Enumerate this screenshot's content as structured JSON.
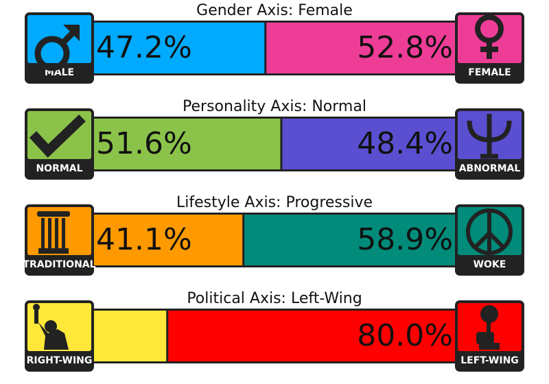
{
  "axes": [
    {
      "title": "Gender Axis: Female",
      "left": {
        "name": "MALE",
        "value": 47.2,
        "label": "47.2%",
        "color": "#00aaff"
      },
      "right": {
        "name": "FEMALE",
        "value": 52.8,
        "label": "52.8%",
        "color": "#ee3d97"
      }
    },
    {
      "title": "Personality Axis: Normal",
      "left": {
        "name": "NORMAL",
        "value": 51.6,
        "label": "51.6%",
        "color": "#8bc34a"
      },
      "right": {
        "name": "ABNORMAL",
        "value": 48.4,
        "label": "48.4%",
        "color": "#5b4fd1"
      }
    },
    {
      "title": "Lifestyle Axis: Progressive",
      "left": {
        "name": "TRADITIONAL",
        "value": 41.1,
        "label": "41.1%",
        "color": "#ff9900"
      },
      "right": {
        "name": "WOKE",
        "value": 58.9,
        "label": "58.9%",
        "color": "#008b7a"
      }
    },
    {
      "title": "Political Axis: Left-Wing",
      "left": {
        "name": "RIGHT-WING",
        "value": 20.0,
        "label": null,
        "color": "#ffe83a"
      },
      "right": {
        "name": "LEFT-WING",
        "value": 80.0,
        "label": "80.0%",
        "color": "#ff0000"
      }
    }
  ]
}
